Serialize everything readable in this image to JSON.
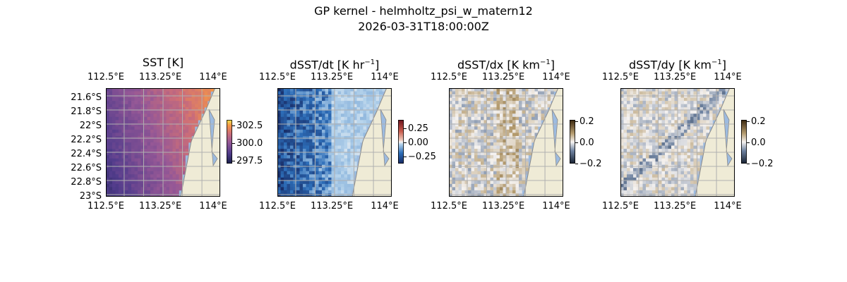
{
  "figure": {
    "title_line1": "GP kernel - helmholtz_psi_w_matern12",
    "title_line2": "2026-03-31T18:00:00Z"
  },
  "chart_data": [
    {
      "type": "heatmap",
      "title": "SST [K]",
      "colormap": "thermal",
      "colorbar": {
        "ticks": [
          "302.5",
          "300.0",
          "297.5"
        ],
        "range": [
          296.5,
          303.5
        ]
      },
      "lon_ticks": [
        "112.5°E",
        "113.25°E",
        "114°E"
      ],
      "lat_ticks": [
        "21.6°S",
        "21.8°S",
        "22°S",
        "22.2°S",
        "22.4°S",
        "22.6°S",
        "22.8°S",
        "23°S"
      ],
      "show_lat_labels": true,
      "field": "sst"
    },
    {
      "type": "heatmap",
      "title": "dSST/dt [K hr",
      "title_sup": "−1",
      "title_tail": "]",
      "colormap": "diverging-balance",
      "colorbar": {
        "ticks": [
          "0.25",
          "0.00",
          "−0.25"
        ],
        "range": [
          -0.4,
          0.4
        ]
      },
      "lon_ticks": [
        "112.5°E",
        "113.25°E",
        "114°E"
      ],
      "show_lat_labels": false,
      "field": "dsst_dt"
    },
    {
      "type": "heatmap",
      "title": "dSST/dx [K km",
      "title_sup": "−1",
      "title_tail": "]",
      "colormap": "diverging-brown",
      "colorbar": {
        "ticks": [
          "0.2",
          "0.0",
          "−0.2"
        ],
        "range": [
          -0.2,
          0.2
        ]
      },
      "lon_ticks": [
        "112.5°E",
        "113.25°E",
        "114°E"
      ],
      "show_lat_labels": false,
      "field": "dsst_dx"
    },
    {
      "type": "heatmap",
      "title": "dSST/dy [K km",
      "title_sup": "−1",
      "title_tail": "]",
      "colormap": "diverging-brown",
      "colorbar": {
        "ticks": [
          "0.2",
          "0.0",
          "−0.2"
        ],
        "range": [
          -0.2,
          0.2
        ]
      },
      "lon_ticks": [
        "112.5°E",
        "113.25°E",
        "114°E"
      ],
      "show_lat_labels": false,
      "field": "dsst_dy"
    }
  ],
  "colors": {
    "land": "#efebd6",
    "ocean": "#9dbbe0",
    "coast": "#8a8a8a",
    "grid": "#b0b0b0"
  }
}
